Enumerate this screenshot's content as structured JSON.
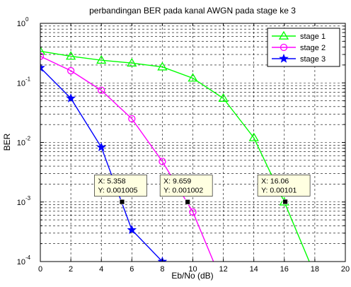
{
  "chart_data": {
    "type": "line",
    "title": "perbandingan BER pada kanal AWGN pada stage ke 3",
    "xlabel": "Eb/No (dB)",
    "ylabel": "BER",
    "xlim": [
      0,
      20
    ],
    "ylim": [
      0.0001,
      1
    ],
    "yscale": "log",
    "grid": "major and minor, dashed",
    "legend_position": "top-right",
    "x_ticks": [
      "0",
      "2",
      "4",
      "6",
      "8",
      "10",
      "12",
      "14",
      "16",
      "18",
      "20"
    ],
    "y_ticks": [
      {
        "base": "10",
        "exp": "0"
      },
      {
        "base": "10",
        "exp": "-1"
      },
      {
        "base": "10",
        "exp": "-2"
      },
      {
        "base": "10",
        "exp": "-3"
      },
      {
        "base": "10",
        "exp": "-4"
      }
    ],
    "series": [
      {
        "name": "stage 1",
        "color": "#00ff00",
        "marker": "triangle",
        "x": [
          0,
          2,
          4,
          6,
          8,
          10,
          12,
          14,
          16,
          18
        ],
        "y": [
          0.34,
          0.28,
          0.24,
          0.215,
          0.185,
          0.12,
          0.055,
          0.012,
          0.001,
          6e-05
        ]
      },
      {
        "name": "stage 2",
        "color": "#ff00ff",
        "marker": "circle",
        "x": [
          0,
          2,
          4,
          6,
          8,
          10,
          12
        ],
        "y": [
          0.28,
          0.16,
          0.075,
          0.025,
          0.0048,
          0.00068,
          4e-05
        ]
      },
      {
        "name": "stage 3",
        "color": "#0000ff",
        "marker": "star",
        "x": [
          0,
          2,
          4,
          6,
          8
        ],
        "y": [
          0.18,
          0.055,
          0.0083,
          0.00034,
          0.0001
        ]
      }
    ],
    "datatips": [
      {
        "x": 5.358,
        "y": 0.001005,
        "label_x": "X: 5.358",
        "label_y": "Y: 0.001005"
      },
      {
        "x": 9.659,
        "y": 0.001002,
        "label_x": "X: 9.659",
        "label_y": "Y: 0.001002"
      },
      {
        "x": 16.06,
        "y": 0.00101,
        "label_x": "X: 16.06",
        "label_y": "Y: 0.00101"
      }
    ]
  }
}
